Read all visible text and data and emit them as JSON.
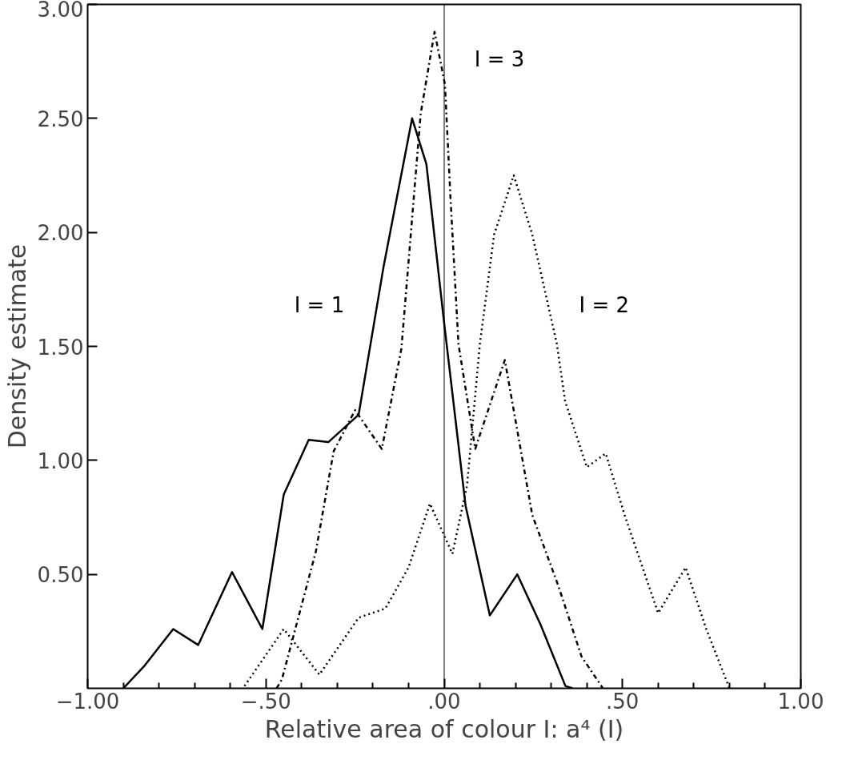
{
  "chart_data": {
    "type": "line",
    "xlabel": "Relative area of colour I: a⁴ (I)",
    "ylabel": "Density estimate",
    "xlim": [
      -1.0,
      1.0
    ],
    "ylim": [
      0,
      3.0
    ],
    "xticks": [
      {
        "value": -1.0,
        "label": "−1.00"
      },
      {
        "value": -0.9,
        "label": null
      },
      {
        "value": -0.8,
        "label": null
      },
      {
        "value": -0.7,
        "label": null
      },
      {
        "value": -0.6,
        "label": null
      },
      {
        "value": -0.5,
        "label": "−.50"
      },
      {
        "value": -0.4,
        "label": null
      },
      {
        "value": -0.3,
        "label": null
      },
      {
        "value": -0.2,
        "label": null
      },
      {
        "value": -0.1,
        "label": null
      },
      {
        "value": 0,
        "label": ".00"
      },
      {
        "value": 0.1,
        "label": null
      },
      {
        "value": 0.2,
        "label": null
      },
      {
        "value": 0.3,
        "label": null
      },
      {
        "value": 0.4,
        "label": null
      },
      {
        "value": 0.5,
        "label": ".50"
      },
      {
        "value": 0.6,
        "label": null
      },
      {
        "value": 0.7,
        "label": null
      },
      {
        "value": 0.8,
        "label": null
      },
      {
        "value": 0.9,
        "label": null
      },
      {
        "value": 1.0,
        "label": "1.00"
      }
    ],
    "yticks": [
      {
        "value": 0.5,
        "label": "0.50"
      },
      {
        "value": 1.0,
        "label": "1.00"
      },
      {
        "value": 1.5,
        "label": "1.50"
      },
      {
        "value": 2.0,
        "label": "2.00"
      },
      {
        "value": 2.5,
        "label": "2.50"
      },
      {
        "value": 3.0,
        "label": "3.00"
      }
    ],
    "grid": false,
    "ref_lines": [
      {
        "axis": "x",
        "value": 0,
        "color": "#000000",
        "line_style": "solid"
      }
    ],
    "series": [
      {
        "name": "I = 1",
        "color": "#000000",
        "line_style": "solid",
        "x": [
          -0.9,
          -0.84,
          -0.76,
          -0.69,
          -0.595,
          -0.51,
          -0.45,
          -0.38,
          -0.325,
          -0.24,
          -0.17,
          -0.09,
          -0.05,
          0.0,
          0.06,
          0.128,
          0.205,
          0.27,
          0.34,
          0.36
        ],
        "values": [
          0,
          0.1,
          0.26,
          0.19,
          0.51,
          0.26,
          0.85,
          1.09,
          1.08,
          1.2,
          1.85,
          2.5,
          2.3,
          1.6,
          0.8,
          0.32,
          0.5,
          0.28,
          0.01,
          0
        ]
      },
      {
        "name": "I = 3",
        "color": "#000000",
        "line_style": "dashdot",
        "x": [
          -0.47,
          -0.455,
          -0.36,
          -0.31,
          -0.25,
          -0.175,
          -0.12,
          -0.066,
          -0.027,
          0.002,
          0.018,
          0.04,
          0.087,
          0.17,
          0.247,
          0.32,
          0.385,
          0.445
        ],
        "values": [
          0,
          0.04,
          0.6,
          1.04,
          1.22,
          1.05,
          1.49,
          2.52,
          2.88,
          2.65,
          2.14,
          1.51,
          1.05,
          1.44,
          0.76,
          0.45,
          0.14,
          0
        ]
      },
      {
        "name": "I = 2",
        "color": "#000000",
        "line_style": "dotted",
        "x": [
          -0.56,
          -0.45,
          -0.35,
          -0.24,
          -0.165,
          -0.1,
          -0.04,
          0.023,
          0.064,
          0.1,
          0.14,
          0.195,
          0.247,
          0.316,
          0.339,
          0.4,
          0.453,
          0.506,
          0.6,
          0.677,
          0.735,
          0.8
        ],
        "values": [
          0.01,
          0.26,
          0.06,
          0.31,
          0.35,
          0.53,
          0.81,
          0.59,
          0.89,
          1.51,
          1.99,
          2.25,
          1.99,
          1.51,
          1.26,
          0.97,
          1.03,
          0.76,
          0.33,
          0.53,
          0.26,
          0
        ]
      }
    ]
  }
}
